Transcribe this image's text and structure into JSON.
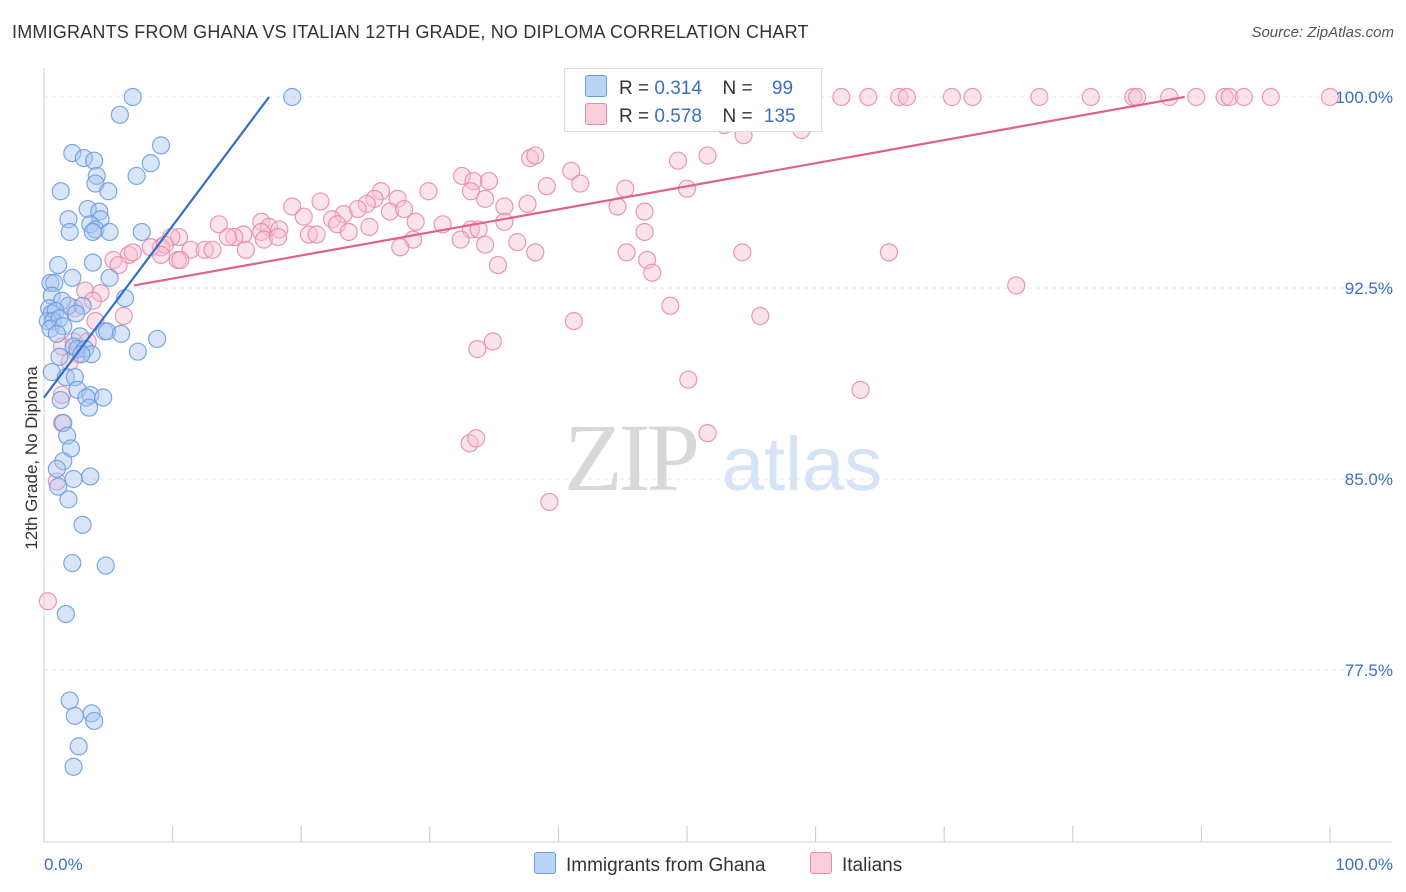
{
  "title": "IMMIGRANTS FROM GHANA VS ITALIAN 12TH GRADE, NO DIPLOMA CORRELATION CHART",
  "source": "Source: ZipAtlas.com",
  "watermark": {
    "zip": "ZIP",
    "atlas": "atlas"
  },
  "colors": {
    "blue_fill": "#a9c6f0",
    "blue_stroke": "#6d9de0",
    "blue_line": "#2f6fd0",
    "pink_fill": "#f6c0d2",
    "pink_stroke": "#e98bab",
    "pink_line": "#e0608e",
    "tick_label": "#3a6fc4",
    "grid": "#e3e3e3"
  },
  "legend": {
    "rows": [
      {
        "r_label": "R =",
        "r_value": "0.314",
        "n_label": "N =",
        "n_value": "99"
      },
      {
        "r_label": "R =",
        "r_value": "0.578",
        "n_label": "N =",
        "n_value": "135"
      }
    ]
  },
  "bottom_legend": {
    "blue": "Immigrants from Ghana",
    "pink": "Italians"
  },
  "chart_data": {
    "type": "scatter",
    "title": "IMMIGRANTS FROM GHANA VS ITALIAN 12TH GRADE, NO DIPLOMA CORRELATION CHART",
    "xlabel": "",
    "ylabel": "12th Grade, No Diploma",
    "xlim": [
      0,
      100
    ],
    "ylim": [
      70.9,
      100.7
    ],
    "x_tick_labels": [
      "0.0%",
      "100.0%"
    ],
    "y_ticks": [
      77.5,
      85.0,
      92.5,
      100.0
    ],
    "y_tick_labels": [
      "77.5%",
      "85.0%",
      "92.5%",
      "100.0%"
    ],
    "grid": true,
    "series": [
      {
        "name": "Immigrants from Ghana",
        "R": 0.314,
        "N": 99,
        "trend": {
          "x": [
            0.0,
            17.5
          ],
          "y": [
            88.2,
            100.0
          ]
        },
        "points": [
          [
            6.9,
            100.0
          ],
          [
            19.3,
            100.0
          ],
          [
            5.9,
            99.3
          ],
          [
            9.1,
            98.1
          ],
          [
            2.2,
            97.8
          ],
          [
            3.1,
            97.6
          ],
          [
            3.9,
            97.5
          ],
          [
            8.3,
            97.4
          ],
          [
            4.1,
            96.9
          ],
          [
            7.2,
            96.9
          ],
          [
            4.0,
            96.6
          ],
          [
            1.3,
            96.3
          ],
          [
            5.0,
            96.3
          ],
          [
            3.4,
            95.6
          ],
          [
            4.3,
            95.5
          ],
          [
            4.4,
            95.2
          ],
          [
            1.9,
            95.2
          ],
          [
            3.6,
            95.0
          ],
          [
            4.0,
            94.8
          ],
          [
            2.0,
            94.7
          ],
          [
            5.1,
            94.7
          ],
          [
            3.8,
            94.7
          ],
          [
            7.6,
            94.7
          ],
          [
            3.8,
            93.5
          ],
          [
            1.1,
            93.4
          ],
          [
            5.1,
            92.9
          ],
          [
            0.5,
            92.7
          ],
          [
            0.8,
            92.7
          ],
          [
            2.2,
            92.9
          ],
          [
            0.6,
            92.2
          ],
          [
            1.4,
            92.0
          ],
          [
            6.3,
            92.1
          ],
          [
            1.9,
            91.8
          ],
          [
            0.4,
            91.7
          ],
          [
            3.0,
            91.8
          ],
          [
            0.6,
            91.5
          ],
          [
            0.9,
            91.6
          ],
          [
            2.5,
            91.5
          ],
          [
            0.3,
            91.2
          ],
          [
            0.7,
            91.2
          ],
          [
            1.2,
            91.3
          ],
          [
            0.5,
            90.9
          ],
          [
            1.5,
            91.0
          ],
          [
            4.7,
            90.8
          ],
          [
            4.9,
            90.8
          ],
          [
            2.8,
            90.6
          ],
          [
            8.8,
            90.5
          ],
          [
            1.0,
            90.7
          ],
          [
            6.0,
            90.7
          ],
          [
            2.3,
            90.2
          ],
          [
            2.6,
            90.1
          ],
          [
            3.2,
            90.1
          ],
          [
            7.3,
            90.0
          ],
          [
            3.7,
            89.9
          ],
          [
            1.2,
            89.8
          ],
          [
            2.9,
            89.9
          ],
          [
            0.6,
            89.2
          ],
          [
            1.7,
            89.0
          ],
          [
            2.4,
            89.0
          ],
          [
            2.6,
            88.5
          ],
          [
            3.6,
            88.3
          ],
          [
            3.3,
            88.2
          ],
          [
            1.3,
            88.1
          ],
          [
            4.6,
            88.2
          ],
          [
            3.5,
            87.8
          ],
          [
            1.5,
            87.2
          ],
          [
            1.8,
            86.7
          ],
          [
            2.1,
            86.2
          ],
          [
            1.5,
            85.7
          ],
          [
            1.0,
            85.4
          ],
          [
            2.3,
            85.0
          ],
          [
            3.6,
            85.1
          ],
          [
            1.1,
            84.7
          ],
          [
            1.9,
            84.2
          ],
          [
            3.0,
            83.2
          ],
          [
            2.2,
            81.7
          ],
          [
            4.8,
            81.6
          ],
          [
            1.7,
            79.7
          ],
          [
            2.0,
            76.3
          ],
          [
            3.7,
            75.8
          ],
          [
            2.4,
            75.7
          ],
          [
            3.9,
            75.5
          ],
          [
            2.7,
            74.5
          ],
          [
            2.3,
            73.7
          ]
        ]
      },
      {
        "name": "Italians",
        "R": 0.578,
        "N": 135,
        "trend": {
          "x": [
            7.0,
            88.7
          ],
          "y": [
            92.6,
            100.0
          ]
        },
        "points": [
          [
            47.0,
            100.0
          ],
          [
            48.9,
            100.0
          ],
          [
            56.0,
            100.0
          ],
          [
            58.3,
            100.0
          ],
          [
            54.6,
            100.0
          ],
          [
            52.4,
            100.0
          ],
          [
            55.4,
            100.0
          ],
          [
            56.7,
            100.0
          ],
          [
            57.2,
            100.0
          ],
          [
            62.0,
            100.0
          ],
          [
            64.1,
            100.0
          ],
          [
            66.5,
            100.0
          ],
          [
            67.1,
            100.0
          ],
          [
            70.6,
            100.0
          ],
          [
            72.2,
            100.0
          ],
          [
            77.4,
            100.0
          ],
          [
            81.4,
            100.0
          ],
          [
            84.7,
            100.0
          ],
          [
            85.0,
            100.0
          ],
          [
            87.5,
            100.0
          ],
          [
            89.6,
            100.0
          ],
          [
            91.8,
            100.0
          ],
          [
            92.2,
            100.0
          ],
          [
            93.3,
            100.0
          ],
          [
            95.4,
            100.0
          ],
          [
            100.0,
            100.0
          ],
          [
            57.2,
            99.7
          ],
          [
            52.9,
            98.9
          ],
          [
            54.4,
            98.5
          ],
          [
            58.9,
            98.7
          ],
          [
            51.6,
            97.7
          ],
          [
            49.3,
            97.5
          ],
          [
            37.8,
            97.6
          ],
          [
            38.2,
            97.7
          ],
          [
            41.0,
            97.1
          ],
          [
            32.5,
            96.9
          ],
          [
            33.4,
            96.7
          ],
          [
            34.6,
            96.7
          ],
          [
            26.2,
            96.3
          ],
          [
            29.9,
            96.3
          ],
          [
            39.1,
            96.5
          ],
          [
            41.7,
            96.6
          ],
          [
            45.2,
            96.4
          ],
          [
            50.0,
            96.4
          ],
          [
            33.2,
            96.3
          ],
          [
            25.7,
            96.0
          ],
          [
            27.5,
            96.0
          ],
          [
            34.3,
            96.0
          ],
          [
            21.5,
            95.9
          ],
          [
            25.1,
            95.8
          ],
          [
            19.3,
            95.7
          ],
          [
            24.4,
            95.6
          ],
          [
            35.8,
            95.7
          ],
          [
            37.6,
            95.8
          ],
          [
            26.9,
            95.5
          ],
          [
            28.0,
            95.6
          ],
          [
            44.6,
            95.7
          ],
          [
            46.7,
            95.5
          ],
          [
            23.3,
            95.4
          ],
          [
            20.2,
            95.3
          ],
          [
            22.4,
            95.2
          ],
          [
            28.9,
            95.1
          ],
          [
            31.0,
            95.0
          ],
          [
            16.9,
            95.1
          ],
          [
            13.6,
            95.0
          ],
          [
            17.5,
            94.9
          ],
          [
            22.8,
            95.0
          ],
          [
            35.8,
            95.1
          ],
          [
            25.3,
            94.9
          ],
          [
            33.2,
            94.8
          ],
          [
            33.8,
            94.8
          ],
          [
            18.3,
            94.8
          ],
          [
            23.7,
            94.7
          ],
          [
            20.6,
            94.6
          ],
          [
            21.2,
            94.6
          ],
          [
            16.9,
            94.7
          ],
          [
            15.5,
            94.6
          ],
          [
            46.7,
            94.7
          ],
          [
            10.5,
            94.5
          ],
          [
            14.8,
            94.5
          ],
          [
            14.3,
            94.5
          ],
          [
            17.1,
            94.4
          ],
          [
            18.2,
            94.5
          ],
          [
            28.7,
            94.4
          ],
          [
            32.4,
            94.4
          ],
          [
            36.8,
            94.3
          ],
          [
            34.3,
            94.2
          ],
          [
            9.9,
            94.5
          ],
          [
            9.1,
            94.1
          ],
          [
            8.3,
            94.1
          ],
          [
            9.4,
            94.2
          ],
          [
            11.4,
            94.0
          ],
          [
            12.5,
            94.0
          ],
          [
            13.1,
            94.0
          ],
          [
            15.7,
            94.0
          ],
          [
            27.7,
            94.1
          ],
          [
            38.2,
            93.9
          ],
          [
            9.1,
            93.8
          ],
          [
            6.6,
            93.8
          ],
          [
            6.9,
            93.9
          ],
          [
            5.4,
            93.6
          ],
          [
            10.4,
            93.6
          ],
          [
            10.6,
            93.6
          ],
          [
            5.8,
            93.4
          ],
          [
            46.9,
            93.6
          ],
          [
            35.3,
            93.4
          ],
          [
            47.3,
            93.1
          ],
          [
            45.3,
            93.9
          ],
          [
            65.7,
            93.9
          ],
          [
            54.3,
            93.9
          ],
          [
            75.6,
            92.6
          ],
          [
            3.2,
            92.4
          ],
          [
            4.4,
            92.3
          ],
          [
            3.8,
            92.0
          ],
          [
            2.4,
            91.7
          ],
          [
            48.7,
            91.8
          ],
          [
            55.7,
            91.4
          ],
          [
            4.0,
            91.2
          ],
          [
            6.2,
            91.4
          ],
          [
            41.2,
            91.2
          ],
          [
            34.9,
            90.4
          ],
          [
            33.7,
            90.1
          ],
          [
            2.3,
            90.4
          ],
          [
            3.4,
            90.4
          ],
          [
            1.4,
            90.2
          ],
          [
            2.6,
            89.9
          ],
          [
            2.0,
            89.6
          ],
          [
            50.1,
            88.9
          ],
          [
            63.5,
            88.5
          ],
          [
            1.4,
            88.3
          ],
          [
            1.4,
            87.2
          ],
          [
            51.6,
            86.8
          ],
          [
            33.1,
            86.4
          ],
          [
            33.6,
            86.6
          ],
          [
            1.0,
            84.9
          ],
          [
            39.3,
            84.1
          ],
          [
            0.3,
            80.2
          ]
        ]
      }
    ]
  }
}
